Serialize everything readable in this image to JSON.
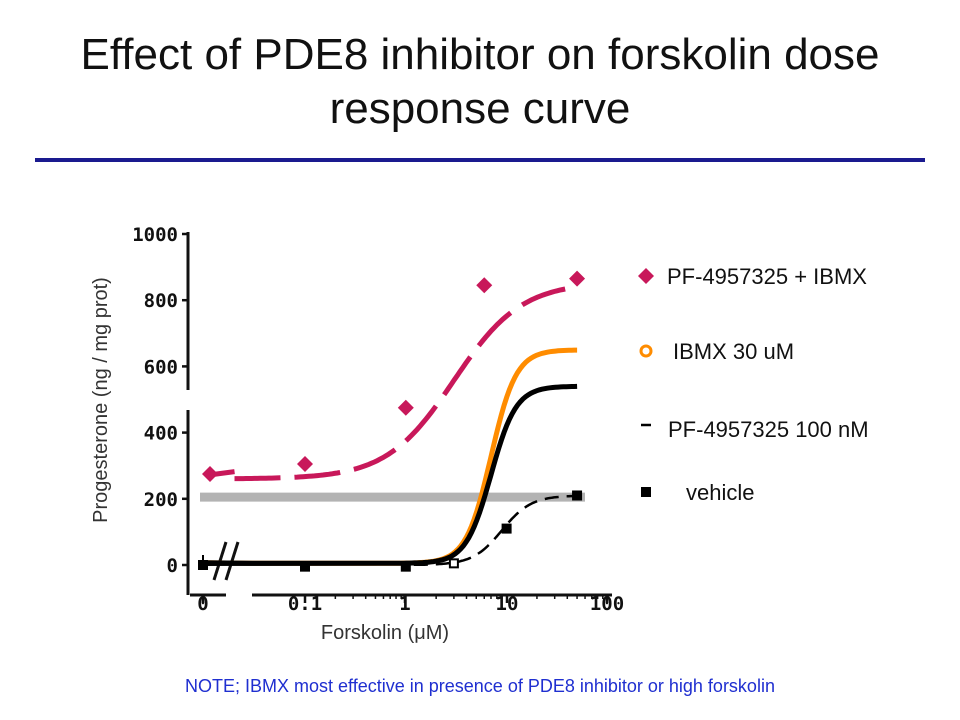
{
  "slide": {
    "title_line1": "Effect of PDE8 inhibitor on forskolin dose",
    "title_line2": "response curve",
    "note": "NOTE; IBMX most effective in presence of PDE8 inhibitor or high forskolin"
  },
  "chart_data": {
    "type": "line",
    "title": "",
    "xlabel": "Forskolin (μM)",
    "ylabel": "Progesterone (ng / mg prot)",
    "x_scale": "log",
    "x_ticks": [
      "0",
      "0.1",
      "1",
      "10",
      "100"
    ],
    "y_ticks": [
      "0",
      "200",
      "400",
      "600",
      "800",
      "1000"
    ],
    "ylim": [
      0,
      1000
    ],
    "axis_break": true,
    "legend_position": "right",
    "series": [
      {
        "name": "PF-4957325 + IBMX",
        "color": "#c8185a",
        "marker": "diamond",
        "line": "dashed",
        "x": [
          "0",
          0.1,
          1,
          6,
          50
        ],
        "y": [
          275,
          305,
          475,
          845,
          865
        ],
        "curve": {
          "bottom": 260,
          "top": 855,
          "ec50": 3,
          "hill": 1.3
        }
      },
      {
        "name": "IBMX 30 uM",
        "color": "#ff8c00",
        "marker": "open-circle",
        "line": "solid",
        "x": [],
        "y": [],
        "curve": {
          "bottom": 5,
          "top": 650,
          "ec50": 7,
          "hill": 3.5
        }
      },
      {
        "name": "PF-4957325 100 nM",
        "color": "#000000",
        "marker": "dash",
        "line": "solid",
        "x": [],
        "y": [],
        "curve": {
          "bottom": 5,
          "top": 540,
          "ec50": 7,
          "hill": 3.5
        }
      },
      {
        "name": "vehicle",
        "color": "#000000",
        "marker": "square",
        "line": "dashed",
        "x": [
          "0",
          0.1,
          1,
          3,
          10,
          50
        ],
        "y": [
          0,
          -5,
          -5,
          5,
          110,
          210
        ],
        "curve": {
          "bottom": 0,
          "top": 210,
          "ec50": 9,
          "hill": 3
        }
      }
    ],
    "reference_line": {
      "y": 205,
      "color": "#b3b3b3"
    }
  }
}
